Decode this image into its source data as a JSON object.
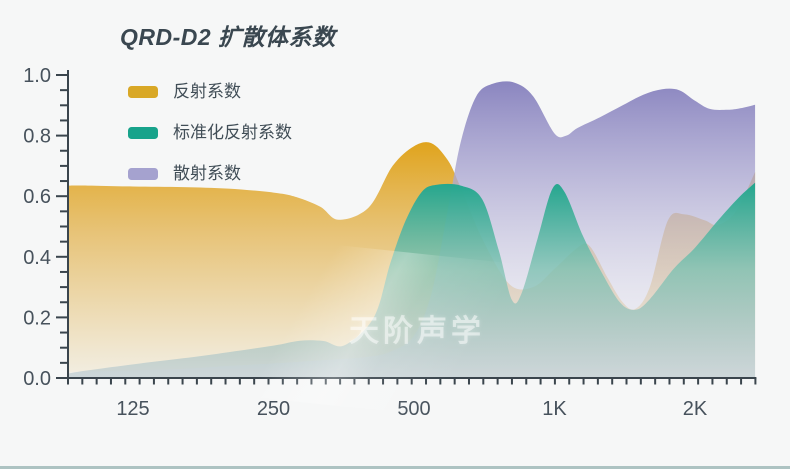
{
  "title": "QRD-D2 扩散体系数",
  "watermark": "天阶声学",
  "colors": {
    "background": "#f6f7f7",
    "axis": "#3a454d",
    "axis_label": "#47525c",
    "title_text": "#3a4750",
    "legend_text": "#414e57",
    "bottom_accent": "#adc3c2",
    "watermark_text": "rgba(255,255,255,0.5)"
  },
  "chart_data": {
    "type": "area",
    "title": "QRD-D2 扩散体系数",
    "xlabel": "",
    "ylabel": "",
    "x_scale": "log2-frequency",
    "x_unit": "Hz",
    "x_range_hz": [
      91,
      2690
    ],
    "ylim": [
      0,
      1
    ],
    "grid": false,
    "legend_position": "top-left",
    "x_axis": {
      "tick_values": [
        125,
        250,
        500,
        1000,
        2000
      ],
      "tick_labels": [
        "125",
        "250",
        "500",
        "1K",
        "2K"
      ],
      "minor_tick_count": 49
    },
    "y_axis": {
      "tick_values": [
        0.0,
        0.2,
        0.4,
        0.6,
        0.8,
        1.0
      ],
      "tick_labels": [
        "0.0",
        "0.2",
        "0.4",
        "0.6",
        "0.8",
        "1.0"
      ],
      "minor_step": 0.05
    },
    "series": [
      {
        "name": "反射系数",
        "legend_color": "#d9a826",
        "stops": [
          [
            0,
            "#e0a41e",
            1
          ],
          [
            0.38,
            "#e5bc66",
            0.88
          ],
          [
            1,
            "#f1ecde",
            0.8
          ]
        ],
        "z": 1,
        "points": [
          [
            91,
            0.635
          ],
          [
            100,
            0.635
          ],
          [
            125,
            0.632
          ],
          [
            160,
            0.63
          ],
          [
            200,
            0.625
          ],
          [
            250,
            0.612
          ],
          [
            280,
            0.597
          ],
          [
            315,
            0.565
          ],
          [
            345,
            0.522
          ],
          [
            400,
            0.563
          ],
          [
            450,
            0.7
          ],
          [
            500,
            0.765
          ],
          [
            545,
            0.775
          ],
          [
            590,
            0.72
          ],
          [
            625,
            0.64
          ],
          [
            700,
            0.46
          ],
          [
            800,
            0.31
          ],
          [
            900,
            0.3
          ],
          [
            1000,
            0.36
          ],
          [
            1120,
            0.43
          ],
          [
            1190,
            0.435
          ],
          [
            1300,
            0.33
          ],
          [
            1400,
            0.25
          ],
          [
            1490,
            0.228
          ],
          [
            1600,
            0.3
          ],
          [
            1750,
            0.52
          ],
          [
            1900,
            0.54
          ],
          [
            2100,
            0.52
          ],
          [
            2240,
            0.505
          ],
          [
            2450,
            0.55
          ],
          [
            2690,
            0.68
          ]
        ]
      },
      {
        "name": "散射系数",
        "legend_color": "#a5a2cf",
        "stops": [
          [
            0,
            "#8b86c0",
            1
          ],
          [
            0.32,
            "#aca8d2",
            0.78
          ],
          [
            0.7,
            "#d4d2e6",
            0.5
          ],
          [
            1,
            "#eeeef4",
            0.35
          ]
        ],
        "z": 2,
        "points": [
          [
            91,
            0.02
          ],
          [
            125,
            0.025
          ],
          [
            160,
            0.03
          ],
          [
            200,
            0.04
          ],
          [
            250,
            0.048
          ],
          [
            315,
            0.058
          ],
          [
            400,
            0.07
          ],
          [
            450,
            0.09
          ],
          [
            500,
            0.14
          ],
          [
            545,
            0.28
          ],
          [
            590,
            0.55
          ],
          [
            630,
            0.78
          ],
          [
            680,
            0.93
          ],
          [
            740,
            0.972
          ],
          [
            820,
            0.975
          ],
          [
            900,
            0.93
          ],
          [
            1000,
            0.807
          ],
          [
            1060,
            0.8
          ],
          [
            1120,
            0.825
          ],
          [
            1250,
            0.86
          ],
          [
            1400,
            0.9
          ],
          [
            1550,
            0.935
          ],
          [
            1700,
            0.953
          ],
          [
            1850,
            0.95
          ],
          [
            2000,
            0.915
          ],
          [
            2150,
            0.888
          ],
          [
            2350,
            0.885
          ],
          [
            2500,
            0.89
          ],
          [
            2690,
            0.902
          ]
        ]
      },
      {
        "name": "标准化反射系数",
        "legend_color": "#17a38b",
        "stops": [
          [
            0,
            "#23a68e",
            1
          ],
          [
            0.45,
            "#7fc2b2",
            0.8
          ],
          [
            1,
            "#aabfcb",
            0.5
          ]
        ],
        "z": 3,
        "points": [
          [
            91,
            0.015
          ],
          [
            100,
            0.025
          ],
          [
            125,
            0.045
          ],
          [
            160,
            0.065
          ],
          [
            200,
            0.085
          ],
          [
            250,
            0.107
          ],
          [
            285,
            0.123
          ],
          [
            320,
            0.122
          ],
          [
            355,
            0.108
          ],
          [
            410,
            0.2
          ],
          [
            445,
            0.38
          ],
          [
            480,
            0.52
          ],
          [
            520,
            0.615
          ],
          [
            560,
            0.638
          ],
          [
            630,
            0.635
          ],
          [
            700,
            0.59
          ],
          [
            760,
            0.42
          ],
          [
            810,
            0.258
          ],
          [
            850,
            0.28
          ],
          [
            920,
            0.46
          ],
          [
            990,
            0.625
          ],
          [
            1050,
            0.615
          ],
          [
            1150,
            0.47
          ],
          [
            1250,
            0.36
          ],
          [
            1380,
            0.25
          ],
          [
            1490,
            0.225
          ],
          [
            1600,
            0.26
          ],
          [
            1800,
            0.36
          ],
          [
            2000,
            0.43
          ],
          [
            2240,
            0.52
          ],
          [
            2480,
            0.595
          ],
          [
            2690,
            0.645
          ]
        ]
      }
    ],
    "legend_order": [
      "反射系数",
      "标准化反射系数",
      "散射系数"
    ]
  }
}
